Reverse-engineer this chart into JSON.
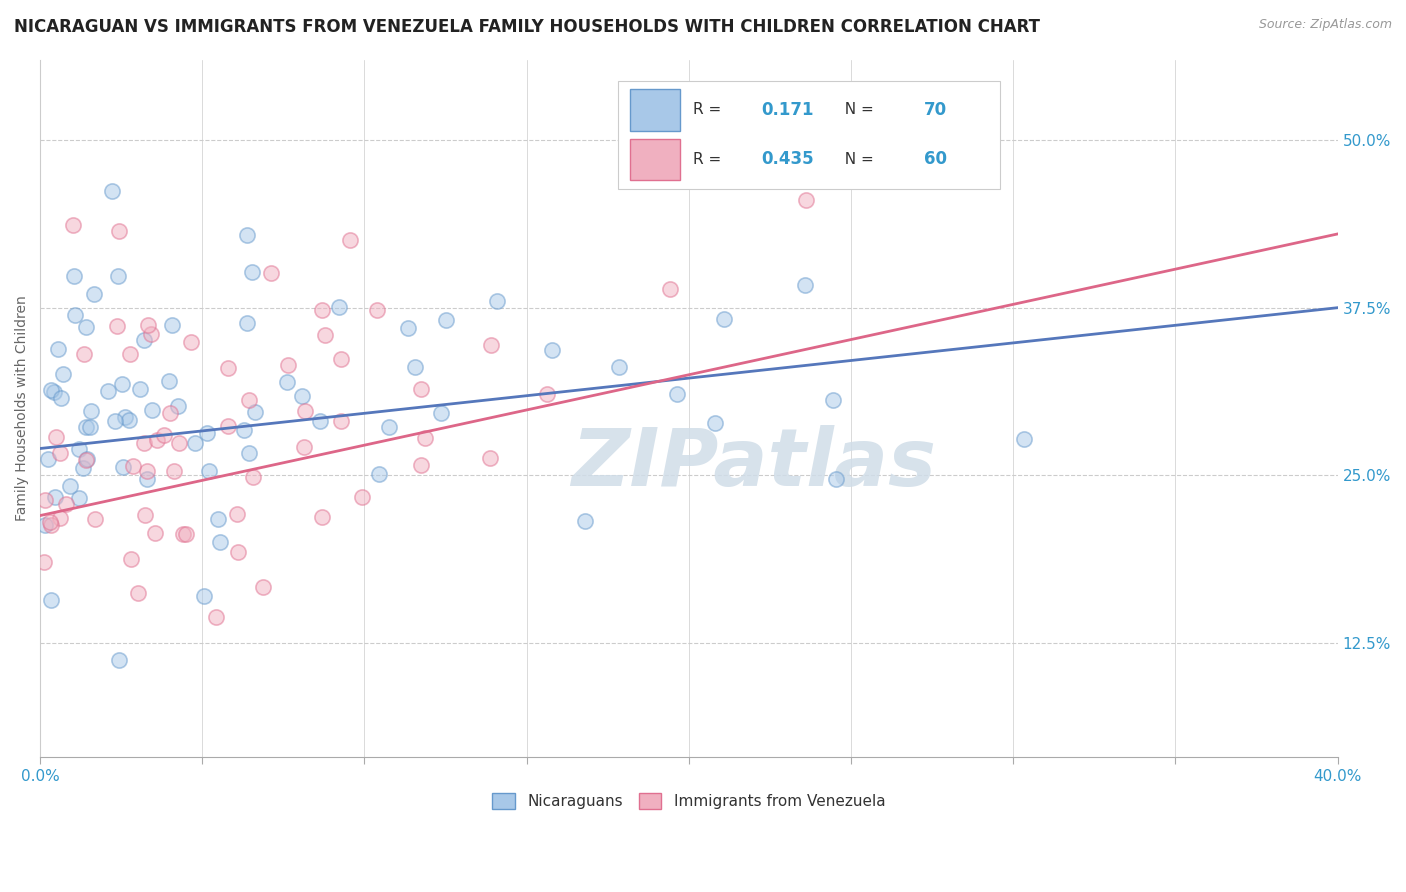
{
  "title": "NICARAGUAN VS IMMIGRANTS FROM VENEZUELA FAMILY HOUSEHOLDS WITH CHILDREN CORRELATION CHART",
  "source": "Source: ZipAtlas.com",
  "ylabel": "Family Households with Children",
  "xlim": [
    0.0,
    0.4
  ],
  "ylim": [
    0.04,
    0.56
  ],
  "xticks": [
    0.0,
    0.05,
    0.1,
    0.15,
    0.2,
    0.25,
    0.3,
    0.35,
    0.4
  ],
  "xticklabels_show": [
    "0.0%",
    "40.0%"
  ],
  "yticks": [
    0.125,
    0.25,
    0.375,
    0.5
  ],
  "yticklabels": [
    "12.5%",
    "25.0%",
    "37.5%",
    "50.0%"
  ],
  "watermark": "ZIPatlas",
  "blue_color": "#a8c8e8",
  "blue_edge_color": "#6699cc",
  "pink_color": "#f0b0c0",
  "pink_edge_color": "#e07090",
  "blue_line_color": "#5577bb",
  "pink_line_color": "#dd6688",
  "legend_R1": "0.171",
  "legend_N1": "70",
  "legend_R2": "0.435",
  "legend_N2": "60",
  "blue_trend_x0": 0.0,
  "blue_trend_y0": 0.27,
  "blue_trend_x1": 0.4,
  "blue_trend_y1": 0.375,
  "pink_trend_x0": 0.0,
  "pink_trend_y0": 0.22,
  "pink_trend_x1": 0.4,
  "pink_trend_y1": 0.43,
  "grid_color": "#cccccc",
  "background_color": "#ffffff",
  "title_fontsize": 12,
  "label_fontsize": 10,
  "tick_fontsize": 11,
  "scatter_size": 120,
  "scatter_alpha": 0.5,
  "scatter_linewidth": 1.2,
  "trend_linewidth": 2.0,
  "N_blue": 70,
  "N_pink": 60,
  "R_blue": 0.171,
  "R_pink": 0.435
}
